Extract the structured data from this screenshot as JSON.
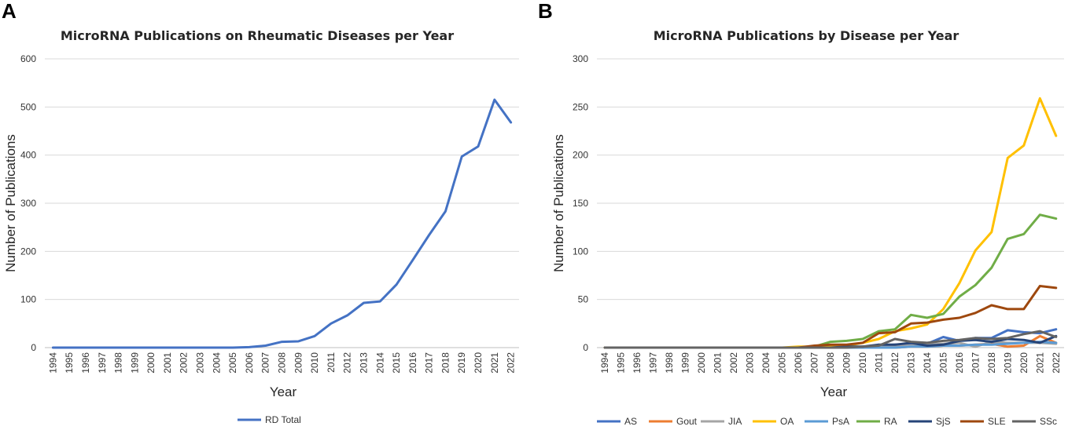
{
  "panels": [
    "A",
    "B"
  ],
  "chart_data": [
    {
      "type": "line",
      "title": "MicroRNA Publications on Rheumatic Diseases per Year",
      "xlabel": "Year",
      "ylabel": "Number of Publications",
      "ylim": [
        0,
        600
      ],
      "yticks": [
        0,
        100,
        200,
        300,
        400,
        500,
        600
      ],
      "grid": true,
      "legend_position": "bottom",
      "categories": [
        "1994",
        "1995",
        "1996",
        "1997",
        "1998",
        "1999",
        "2000",
        "2001",
        "2002",
        "2003",
        "2004",
        "2005",
        "2006",
        "2007",
        "2008",
        "2009",
        "2010",
        "2011",
        "2012",
        "2013",
        "2014",
        "2015",
        "2016",
        "2017",
        "2018",
        "2019",
        "2020",
        "2021",
        "2022"
      ],
      "series": [
        {
          "name": "RD Total",
          "color": "#4472c4",
          "values": [
            0,
            0,
            0,
            0,
            0,
            0,
            0,
            0,
            0,
            0,
            0,
            0,
            1,
            4,
            12,
            13,
            24,
            50,
            67,
            93,
            96,
            131,
            182,
            234,
            283,
            397,
            418,
            515,
            468
          ]
        }
      ]
    },
    {
      "type": "line",
      "title": "MicroRNA Publications by Disease per Year",
      "xlabel": "Year",
      "ylabel": "Number of Publications",
      "ylim": [
        0,
        300
      ],
      "yticks": [
        0,
        50,
        100,
        150,
        200,
        250,
        300
      ],
      "grid": true,
      "legend_position": "bottom",
      "categories": [
        "1994",
        "1995",
        "1996",
        "1997",
        "1998",
        "1999",
        "2000",
        "2001",
        "2002",
        "2003",
        "2004",
        "2005",
        "2006",
        "2007",
        "2008",
        "2009",
        "2010",
        "2011",
        "2012",
        "2013",
        "2014",
        "2015",
        "2016",
        "2017",
        "2018",
        "2019",
        "2020",
        "2021",
        "2022"
      ],
      "series": [
        {
          "name": "AS",
          "color": "#4472c4",
          "values": [
            0,
            0,
            0,
            0,
            0,
            0,
            0,
            0,
            0,
            0,
            0,
            0,
            0,
            0,
            0,
            1,
            1,
            2,
            3,
            3,
            4,
            11,
            7,
            10,
            10,
            18,
            16,
            15,
            19
          ]
        },
        {
          "name": "Gout",
          "color": "#ed7d31",
          "values": [
            0,
            0,
            0,
            0,
            0,
            0,
            0,
            0,
            0,
            0,
            0,
            0,
            0,
            0,
            0,
            0,
            0,
            0,
            0,
            1,
            1,
            2,
            2,
            3,
            4,
            1,
            2,
            12,
            5
          ]
        },
        {
          "name": "JIA",
          "color": "#a5a5a5",
          "values": [
            0,
            0,
            0,
            0,
            0,
            0,
            0,
            0,
            0,
            0,
            0,
            0,
            0,
            0,
            0,
            0,
            1,
            1,
            2,
            2,
            3,
            4,
            5,
            1,
            6,
            5,
            5,
            5,
            4
          ]
        },
        {
          "name": "OA",
          "color": "#ffc000",
          "values": [
            0,
            0,
            0,
            0,
            0,
            0,
            0,
            0,
            0,
            0,
            0,
            0,
            1,
            1,
            2,
            2,
            5,
            9,
            17,
            20,
            24,
            40,
            67,
            101,
            120,
            197,
            210,
            259,
            220
          ]
        },
        {
          "name": "PsA",
          "color": "#5b9bd5",
          "values": [
            0,
            0,
            0,
            0,
            0,
            0,
            0,
            0,
            0,
            0,
            0,
            0,
            0,
            0,
            0,
            0,
            0,
            0,
            0,
            1,
            1,
            2,
            2,
            3,
            3,
            4,
            5,
            6,
            5
          ]
        },
        {
          "name": "RA",
          "color": "#70ad47",
          "values": [
            0,
            0,
            0,
            0,
            0,
            0,
            0,
            0,
            0,
            0,
            0,
            0,
            0,
            1,
            6,
            7,
            9,
            17,
            19,
            34,
            31,
            35,
            53,
            65,
            83,
            113,
            118,
            138,
            134
          ]
        },
        {
          "name": "SjS",
          "color": "#264478",
          "values": [
            0,
            0,
            0,
            0,
            0,
            0,
            0,
            0,
            0,
            0,
            0,
            0,
            0,
            0,
            0,
            1,
            1,
            3,
            3,
            5,
            2,
            3,
            7,
            8,
            6,
            9,
            8,
            5,
            12
          ]
        },
        {
          "name": "SLE",
          "color": "#9e480e",
          "values": [
            0,
            0,
            0,
            0,
            0,
            0,
            0,
            0,
            0,
            0,
            0,
            0,
            0,
            2,
            3,
            3,
            5,
            15,
            16,
            25,
            26,
            29,
            31,
            36,
            44,
            40,
            40,
            64,
            62
          ]
        },
        {
          "name": "SSc",
          "color": "#636363",
          "values": [
            0,
            0,
            0,
            0,
            0,
            0,
            0,
            0,
            0,
            0,
            0,
            0,
            0,
            0,
            0,
            0,
            1,
            2,
            9,
            6,
            5,
            7,
            8,
            10,
            9,
            10,
            14,
            17,
            11
          ]
        }
      ]
    }
  ]
}
